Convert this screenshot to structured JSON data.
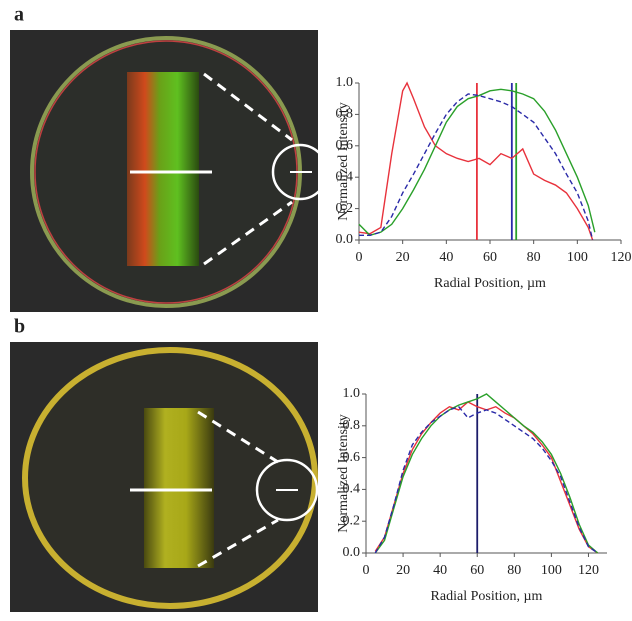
{
  "chart_data": [
    {
      "type": "line",
      "panel_label": "a",
      "xlabel": "Radial Position, µm",
      "ylabel": "Normalized Intensity",
      "xlim": [
        0,
        120
      ],
      "ylim": [
        0,
        1
      ],
      "xticks": [
        0,
        20,
        40,
        60,
        80,
        100,
        120
      ],
      "yticks": [
        {
          "value": 0,
          "label": "0.0"
        },
        {
          "value": 0.2,
          "label": "0.2"
        },
        {
          "value": 0.4,
          "label": "0.4"
        },
        {
          "value": 0.6,
          "label": "0.6"
        },
        {
          "value": 0.8,
          "label": "0.8"
        },
        {
          "value": 1,
          "label": "1.0"
        }
      ],
      "series": [
        {
          "color": "#e8323c",
          "dash": false,
          "x": [
            0,
            5,
            10,
            15,
            20,
            22,
            25,
            30,
            35,
            40,
            45,
            50,
            55,
            60,
            65,
            70,
            75,
            80,
            85,
            90,
            95,
            100,
            105,
            107
          ],
          "values": [
            0.05,
            0.04,
            0.08,
            0.55,
            0.95,
            1.0,
            0.9,
            0.72,
            0.6,
            0.55,
            0.52,
            0.5,
            0.52,
            0.48,
            0.55,
            0.52,
            0.58,
            0.42,
            0.38,
            0.35,
            0.3,
            0.2,
            0.08,
            0.0
          ]
        },
        {
          "color": "#2aa02a",
          "dash": false,
          "x": [
            0,
            5,
            10,
            15,
            20,
            25,
            30,
            35,
            40,
            45,
            50,
            55,
            60,
            65,
            70,
            75,
            80,
            85,
            90,
            95,
            100,
            105,
            108
          ],
          "values": [
            0.1,
            0.03,
            0.05,
            0.1,
            0.2,
            0.32,
            0.45,
            0.6,
            0.75,
            0.85,
            0.9,
            0.92,
            0.95,
            0.96,
            0.95,
            0.93,
            0.9,
            0.82,
            0.7,
            0.55,
            0.4,
            0.22,
            0.05
          ]
        },
        {
          "color": "#2a2aa8",
          "dash": true,
          "x": [
            0,
            5,
            10,
            15,
            20,
            25,
            30,
            35,
            40,
            45,
            50,
            55,
            60,
            65,
            70,
            75,
            80,
            85,
            90,
            95,
            100,
            105,
            107
          ],
          "values": [
            0.03,
            0.03,
            0.05,
            0.15,
            0.3,
            0.42,
            0.55,
            0.68,
            0.8,
            0.88,
            0.93,
            0.92,
            0.9,
            0.88,
            0.85,
            0.8,
            0.75,
            0.65,
            0.55,
            0.42,
            0.3,
            0.12,
            0.0
          ]
        }
      ],
      "vlines": [
        {
          "value": 54,
          "color": "#e8323c"
        },
        {
          "value": 70,
          "color": "#2a2aa8"
        },
        {
          "value": 72,
          "color": "#2aa02a"
        }
      ]
    },
    {
      "type": "line",
      "panel_label": "b",
      "xlabel": "Radial Position, µm",
      "ylabel": "Normalized Intensity",
      "xlim": [
        0,
        130
      ],
      "ylim": [
        0,
        1
      ],
      "xticks": [
        0,
        20,
        40,
        60,
        80,
        100,
        120
      ],
      "yticks": [
        {
          "value": 0,
          "label": "0.0"
        },
        {
          "value": 0.2,
          "label": "0.2"
        },
        {
          "value": 0.4,
          "label": "0.4"
        },
        {
          "value": 0.6,
          "label": "0.6"
        },
        {
          "value": 0.8,
          "label": "0.8"
        },
        {
          "value": 1,
          "label": "1.0"
        }
      ],
      "series": [
        {
          "color": "#e8323c",
          "dash": false,
          "x": [
            5,
            10,
            15,
            20,
            25,
            30,
            35,
            40,
            45,
            50,
            55,
            60,
            65,
            70,
            75,
            80,
            85,
            90,
            95,
            100,
            105,
            110,
            115,
            120,
            125
          ],
          "values": [
            0.01,
            0.1,
            0.3,
            0.5,
            0.65,
            0.75,
            0.82,
            0.88,
            0.92,
            0.9,
            0.95,
            0.92,
            0.9,
            0.92,
            0.88,
            0.85,
            0.8,
            0.75,
            0.68,
            0.6,
            0.45,
            0.3,
            0.15,
            0.04,
            0.0
          ]
        },
        {
          "color": "#2aa02a",
          "dash": false,
          "x": [
            5,
            10,
            15,
            20,
            25,
            30,
            35,
            40,
            45,
            50,
            55,
            60,
            65,
            70,
            75,
            80,
            85,
            90,
            95,
            100,
            105,
            110,
            115,
            120,
            125
          ],
          "values": [
            0.0,
            0.08,
            0.28,
            0.48,
            0.62,
            0.72,
            0.8,
            0.86,
            0.9,
            0.93,
            0.95,
            0.97,
            1.0,
            0.95,
            0.9,
            0.85,
            0.8,
            0.76,
            0.7,
            0.62,
            0.5,
            0.35,
            0.18,
            0.05,
            0.0
          ]
        },
        {
          "color": "#2a2aa8",
          "dash": true,
          "x": [
            5,
            10,
            15,
            20,
            25,
            30,
            35,
            40,
            45,
            50,
            55,
            60,
            65,
            70,
            75,
            80,
            85,
            90,
            95,
            100,
            105,
            110,
            115,
            120,
            125
          ],
          "values": [
            0.0,
            0.1,
            0.3,
            0.52,
            0.68,
            0.76,
            0.82,
            0.86,
            0.9,
            0.92,
            0.85,
            0.88,
            0.9,
            0.88,
            0.84,
            0.8,
            0.76,
            0.72,
            0.66,
            0.58,
            0.48,
            0.32,
            0.16,
            0.04,
            0.0
          ]
        }
      ],
      "vlines": [
        {
          "value": 60,
          "color": "#1c1c6a"
        }
      ]
    }
  ]
}
